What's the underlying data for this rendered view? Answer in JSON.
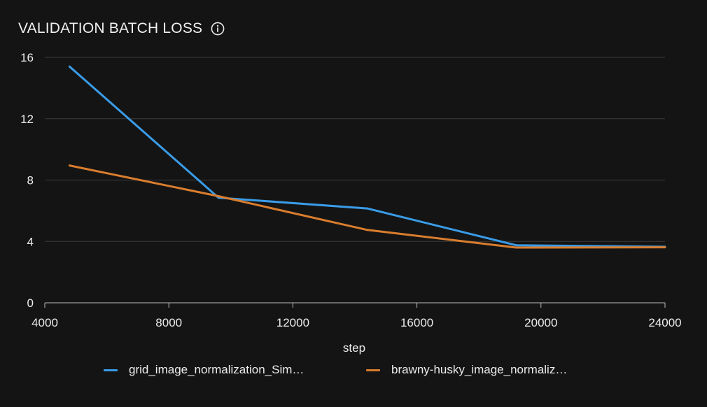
{
  "panel": {
    "title": "VALIDATION BATCH LOSS",
    "info_icon": "info-circle-icon"
  },
  "colors": {
    "background": "#141414",
    "grid": "#3a3a3a",
    "axis": "#bdbdbd",
    "text": "#ececec"
  },
  "chart_data": {
    "type": "line",
    "title": "VALIDATION BATCH LOSS",
    "xlabel": "step",
    "ylabel": "",
    "xlim": [
      4000,
      24000
    ],
    "ylim": [
      0,
      16
    ],
    "xticks": [
      4000,
      8000,
      12000,
      16000,
      20000,
      24000
    ],
    "yticks": [
      0,
      4,
      8,
      12,
      16
    ],
    "grid": true,
    "legend_position": "bottom",
    "series": [
      {
        "name": "grid_image_normalization_Sim…",
        "color": "#3a9ce8",
        "x": [
          4800,
          9600,
          14400,
          19200,
          24000
        ],
        "y": [
          15.4,
          6.85,
          6.15,
          3.75,
          3.65
        ]
      },
      {
        "name": "brawny-husky_image_normaliz…",
        "color": "#d97d2e",
        "x": [
          4800,
          9600,
          14400,
          19200,
          24000
        ],
        "y": [
          8.95,
          6.95,
          4.75,
          3.6,
          3.62
        ]
      }
    ]
  }
}
